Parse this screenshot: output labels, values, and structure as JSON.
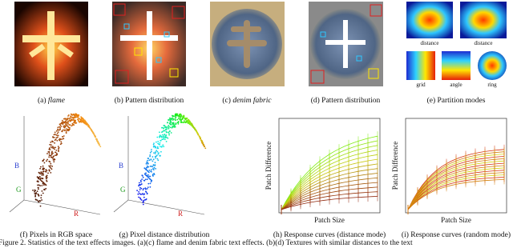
{
  "panels": [
    {
      "label": "(a)",
      "caption": "flame"
    },
    {
      "label": "(b)",
      "caption": "Pattern distribution"
    },
    {
      "label": "(c)",
      "caption": "denim fabric"
    },
    {
      "label": "(d)",
      "caption": "Pattern distribution"
    },
    {
      "label": "(e)",
      "caption": "Partition modes"
    },
    {
      "label": "(f)",
      "caption": "Pixels in RGB space"
    },
    {
      "label": "(g)",
      "caption": "Pixel distance distribution"
    },
    {
      "label": "(h)",
      "caption": "Response curves (distance mode)"
    },
    {
      "label": "(i)",
      "caption": "Response curves (random mode)"
    }
  ],
  "partition_labels": [
    "distance",
    "distance",
    "grid",
    "angle",
    "ring"
  ],
  "axis_letters": [
    "B",
    "G",
    "R"
  ],
  "plot_axes": {
    "y_label": "Patch Difference",
    "x_label": "Patch Size"
  },
  "figure_caption": "Figure 2. Statistics of the text effects images. (a)(c) flame and denim fabric text effects. (b)(d) Textures with similar distances to the text"
}
